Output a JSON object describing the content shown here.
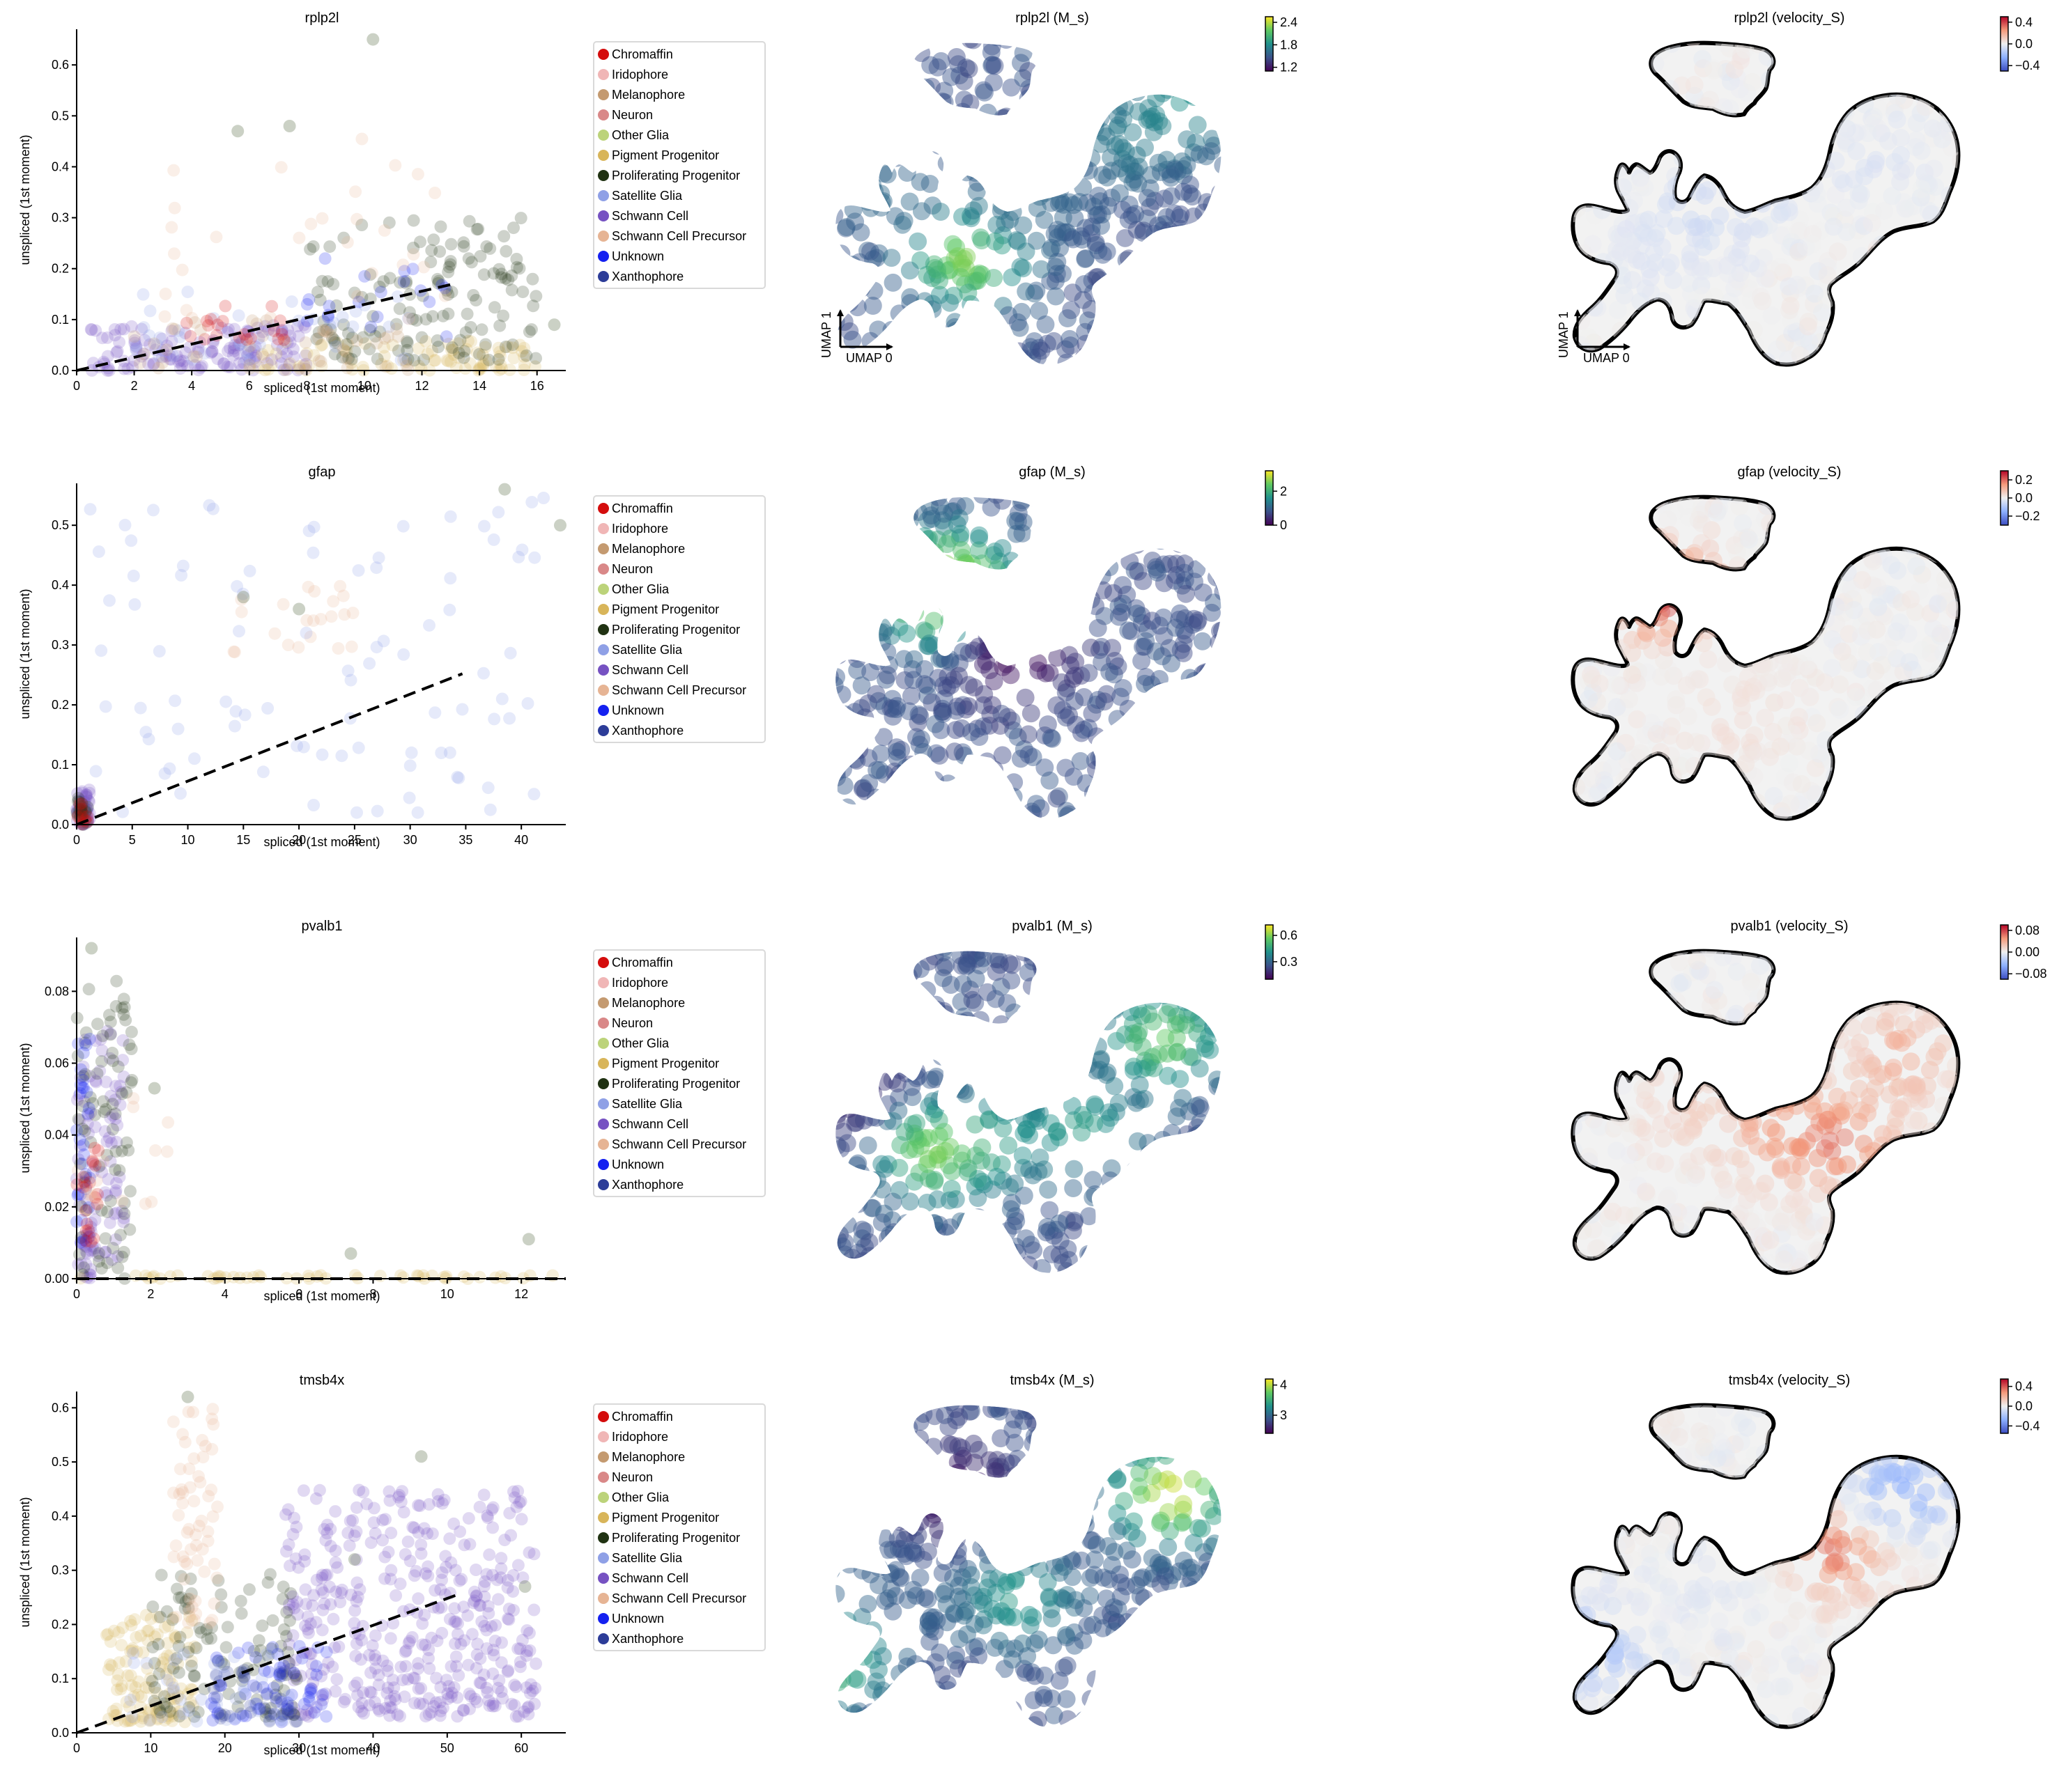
{
  "legend": {
    "items": [
      {
        "label": "Chromaffin",
        "color": "#d40c0c"
      },
      {
        "label": "Iridophore",
        "color": "#f0b6b6"
      },
      {
        "label": "Melanophore",
        "color": "#c49a70"
      },
      {
        "label": "Neuron",
        "color": "#d98888"
      },
      {
        "label": "Other Glia",
        "color": "#bcd37a"
      },
      {
        "label": "Pigment Progenitor",
        "color": "#d8b55a"
      },
      {
        "label": "Proliferating Progenitor",
        "color": "#203212"
      },
      {
        "label": "Satellite Glia",
        "color": "#8fa0e6"
      },
      {
        "label": "Schwann Cell",
        "color": "#7652c2"
      },
      {
        "label": "Schwann Cell Precursor",
        "color": "#e6b494"
      },
      {
        "label": "Unknown",
        "color": "#1420f0"
      },
      {
        "label": "Xanthophore",
        "color": "#2c3c98"
      }
    ]
  },
  "umap_axes": {
    "x": "UMAP 0",
    "y": "UMAP 1"
  },
  "colormaps": {
    "viridis": [
      "#440154",
      "#3b528b",
      "#21918c",
      "#5ec962",
      "#fde725"
    ],
    "coolwarm": [
      "#3b4cc0",
      "#8db0fe",
      "#f0f0f0",
      "#f49a7b",
      "#b40426"
    ]
  },
  "chart_data": [
    {
      "type": "scatter",
      "gene": "rplp2l",
      "title": "rplp2l",
      "xlabel": "spliced (1st moment)",
      "ylabel": "unspliced (1st moment)",
      "xlim": [
        0,
        17
      ],
      "ylim": [
        0,
        0.67
      ],
      "xticks": [
        "0",
        "2",
        "4",
        "6",
        "8",
        "10",
        "12",
        "14",
        "16"
      ],
      "xtick_values": [
        0,
        2,
        4,
        6,
        8,
        10,
        12,
        14,
        16
      ],
      "yticks": [
        "0.0",
        "0.1",
        "0.2",
        "0.3",
        "0.4",
        "0.5",
        "0.6"
      ],
      "ytick_values": [
        0,
        0.1,
        0.2,
        0.3,
        0.4,
        0.5,
        0.6
      ],
      "fit_line": {
        "x": [
          0,
          13.1
        ],
        "y": [
          0,
          0.17
        ]
      },
      "clusters": [
        {
          "ct": 8,
          "xr": [
            0.5,
            8
          ],
          "yr": [
            0,
            0.09
          ],
          "n": 140
        },
        {
          "ct": 5,
          "xr": [
            6,
            16
          ],
          "yr": [
            0,
            0.06
          ],
          "n": 90
        },
        {
          "ct": 6,
          "xr": [
            8,
            16
          ],
          "yr": [
            0.02,
            0.3
          ],
          "n": 140
        },
        {
          "ct": 7,
          "xr": [
            2,
            12
          ],
          "yr": [
            0.02,
            0.16
          ],
          "n": 40
        },
        {
          "ct": 10,
          "xr": [
            8,
            13
          ],
          "yr": [
            0.05,
            0.24
          ],
          "n": 20
        },
        {
          "ct": 9,
          "xr": [
            3,
            13
          ],
          "yr": [
            0.1,
            0.47
          ],
          "n": 30
        },
        {
          "ct": 0,
          "xr": [
            3.5,
            7.5
          ],
          "yr": [
            0.06,
            0.13
          ],
          "n": 20
        },
        {
          "ct": 2,
          "xr": [
            2,
            12
          ],
          "yr": [
            0,
            0.1
          ],
          "n": 40
        }
      ],
      "points": [
        [
          10.3,
          0.65
        ],
        [
          16.6,
          0.09
        ],
        [
          7.4,
          0.48
        ],
        [
          5.6,
          0.47
        ]
      ]
    },
    {
      "type": "scatter",
      "gene": "gfap",
      "title": "gfap",
      "xlabel": "spliced (1st moment)",
      "ylabel": "unspliced (1st moment)",
      "xlim": [
        0,
        44
      ],
      "ylim": [
        0,
        0.57
      ],
      "xticks": [
        "0",
        "5",
        "10",
        "15",
        "20",
        "25",
        "30",
        "35",
        "40"
      ],
      "xtick_values": [
        0,
        5,
        10,
        15,
        20,
        25,
        30,
        35,
        40
      ],
      "yticks": [
        "0.0",
        "0.1",
        "0.2",
        "0.3",
        "0.4",
        "0.5"
      ],
      "ytick_values": [
        0,
        0.1,
        0.2,
        0.3,
        0.4,
        0.5
      ],
      "fit_line": {
        "x": [
          0,
          34.7
        ],
        "y": [
          0,
          0.252
        ]
      },
      "clusters": [
        {
          "ct": 8,
          "xr": [
            0,
            1.2
          ],
          "yr": [
            0,
            0.06
          ],
          "n": 40
        },
        {
          "ct": 6,
          "xr": [
            0,
            1
          ],
          "yr": [
            0,
            0.05
          ],
          "n": 20
        },
        {
          "ct": 0,
          "xr": [
            0,
            1
          ],
          "yr": [
            0,
            0.04
          ],
          "n": 10
        },
        {
          "ct": 9,
          "xr": [
            14,
            26
          ],
          "yr": [
            0.28,
            0.4
          ],
          "n": 22
        },
        {
          "ct": 7,
          "xr": [
            1,
            42
          ],
          "yr": [
            0.02,
            0.55
          ],
          "n": 90
        }
      ],
      "points": [
        [
          38.5,
          0.56
        ],
        [
          43.5,
          0.5
        ],
        [
          15,
          0.38
        ],
        [
          20,
          0.36
        ]
      ]
    },
    {
      "type": "scatter",
      "gene": "pvalb1",
      "title": "pvalb1",
      "xlabel": "spliced (1st moment)",
      "ylabel": "unspliced (1st moment)",
      "xlim": [
        0,
        13.2
      ],
      "ylim": [
        0,
        0.095
      ],
      "xticks": [
        "0",
        "2",
        "4",
        "6",
        "8",
        "10",
        "12"
      ],
      "xtick_values": [
        0,
        2,
        4,
        6,
        8,
        10,
        12
      ],
      "yticks": [
        "0.00",
        "0.02",
        "0.04",
        "0.06",
        "0.08"
      ],
      "ytick_values": [
        0,
        0.02,
        0.04,
        0.06,
        0.08
      ],
      "fit_line": {
        "x": [
          0,
          13.2
        ],
        "y": [
          0,
          0
        ]
      },
      "clusters": [
        {
          "ct": 8,
          "xr": [
            0,
            1.3
          ],
          "yr": [
            0,
            0.07
          ],
          "n": 100
        },
        {
          "ct": 6,
          "xr": [
            0,
            1.5
          ],
          "yr": [
            0,
            0.085
          ],
          "n": 80
        },
        {
          "ct": 10,
          "xr": [
            0,
            0.4
          ],
          "yr": [
            0.01,
            0.07
          ],
          "n": 30
        },
        {
          "ct": 0,
          "xr": [
            0,
            0.6
          ],
          "yr": [
            0.01,
            0.04
          ],
          "n": 20
        },
        {
          "ct": 5,
          "xr": [
            0,
            13
          ],
          "yr": [
            0,
            0.001
          ],
          "n": 50
        },
        {
          "ct": 9,
          "xr": [
            0,
            2.5
          ],
          "yr": [
            0.02,
            0.06
          ],
          "n": 15
        }
      ],
      "points": [
        [
          0.4,
          0.092
        ],
        [
          7.4,
          0.007
        ],
        [
          12.2,
          0.011
        ],
        [
          2.1,
          0.053
        ]
      ]
    },
    {
      "type": "scatter",
      "gene": "tmsb4x",
      "title": "tmsb4x",
      "xlabel": "spliced (1st moment)",
      "ylabel": "unspliced (1st moment)",
      "xlim": [
        0,
        66
      ],
      "ylim": [
        0,
        0.63
      ],
      "xticks": [
        "0",
        "10",
        "20",
        "30",
        "40",
        "50",
        "60"
      ],
      "xtick_values": [
        0,
        10,
        20,
        30,
        40,
        50,
        60
      ],
      "yticks": [
        "0.0",
        "0.1",
        "0.2",
        "0.3",
        "0.4",
        "0.5",
        "0.6"
      ],
      "ytick_values": [
        0,
        0.1,
        0.2,
        0.3,
        0.4,
        0.5,
        0.6
      ],
      "fit_line": {
        "x": [
          0,
          51.6
        ],
        "y": [
          0,
          0.256
        ]
      },
      "clusters": [
        {
          "ct": 8,
          "xr": [
            28,
            62
          ],
          "yr": [
            0.03,
            0.45
          ],
          "n": 420
        },
        {
          "ct": 5,
          "xr": [
            4,
            16
          ],
          "yr": [
            0.02,
            0.22
          ],
          "n": 120
        },
        {
          "ct": 6,
          "xr": [
            10,
            30
          ],
          "yr": [
            0.03,
            0.3
          ],
          "n": 110
        },
        {
          "ct": 10,
          "xr": [
            18,
            34
          ],
          "yr": [
            0.02,
            0.16
          ],
          "n": 60
        },
        {
          "ct": 9,
          "xr": [
            13,
            19
          ],
          "yr": [
            0.2,
            0.6
          ],
          "n": 60
        },
        {
          "ct": 7,
          "xr": [
            5,
            30
          ],
          "yr": [
            0.02,
            0.15
          ],
          "n": 40
        },
        {
          "ct": 11,
          "xr": [
            18,
            30
          ],
          "yr": [
            0.02,
            0.12
          ],
          "n": 30
        }
      ],
      "points": [
        [
          15,
          0.62
        ],
        [
          60.5,
          0.27
        ],
        [
          46.5,
          0.51
        ],
        [
          37.5,
          0.32
        ]
      ]
    }
  ],
  "umap_panels": [
    {
      "row": 0,
      "title": "rplp2l (M_s)",
      "cmap": "viridis",
      "cticks": [
        "1.2",
        "1.8",
        "2.4"
      ],
      "ctick_values": [
        1.2,
        1.8,
        2.4
      ],
      "cmin": 1.1,
      "cmax": 2.55,
      "regions": [
        [
          0.38,
          0.66,
          0.85
        ],
        [
          0.76,
          0.33,
          0.4
        ],
        [
          0.52,
          0.5,
          0.35
        ],
        [
          0.18,
          0.48,
          0.35
        ],
        [
          0.9,
          0.22,
          0.5
        ]
      ]
    },
    {
      "row": 0,
      "title": "rplp2l (velocity_S)",
      "cmap": "coolwarm",
      "cticks": [
        "0.4",
        "0.0",
        "−0.4"
      ],
      "ctick_values": [
        0.4,
        0,
        -0.4
      ],
      "cmin": -0.5,
      "cmax": 0.5,
      "regions": [
        [
          0.5,
          0.45,
          0.42
        ],
        [
          0.35,
          0.55,
          0.4
        ],
        [
          0.8,
          0.4,
          0.44
        ],
        [
          0.25,
          0.7,
          0.45
        ]
      ]
    },
    {
      "row": 1,
      "title": "gfap (M_s)",
      "cmap": "viridis",
      "cticks": [
        "0",
        "2"
      ],
      "ctick_values": [
        0,
        2
      ],
      "cmin": 0,
      "cmax": 3.2,
      "regions": [
        [
          0.33,
          0.3,
          0.95
        ],
        [
          0.33,
          0.32,
          0.8
        ],
        [
          0.5,
          0.5,
          0.02
        ]
      ]
    },
    {
      "row": 1,
      "title": "gfap (velocity_S)",
      "cmap": "coolwarm",
      "cticks": [
        "0.2",
        "0.0",
        "−0.2"
      ],
      "ctick_values": [
        0.2,
        0,
        -0.2
      ],
      "cmin": -0.3,
      "cmax": 0.3,
      "regions": [
        [
          0.3,
          0.33,
          0.9
        ],
        [
          0.5,
          0.5,
          0.52
        ],
        [
          0.45,
          0.7,
          0.56
        ]
      ]
    },
    {
      "row": 2,
      "title": "pvalb1 (M_s)",
      "cmap": "viridis",
      "cticks": [
        "0.6",
        "0.3"
      ],
      "ctick_values": [
        0.6,
        0.3
      ],
      "cmin": 0.1,
      "cmax": 0.72,
      "regions": [
        [
          0.85,
          0.3,
          0.75
        ],
        [
          0.45,
          0.6,
          0.5
        ],
        [
          0.65,
          0.55,
          0.55
        ],
        [
          0.15,
          0.5,
          0.1
        ],
        [
          0.3,
          0.62,
          0.8
        ]
      ]
    },
    {
      "row": 2,
      "title": "pvalb1 (velocity_S)",
      "cmap": "coolwarm",
      "cticks": [
        "0.08",
        "0.00",
        "−0.08"
      ],
      "ctick_values": [
        0.08,
        0,
        -0.08
      ],
      "cmin": -0.1,
      "cmax": 0.1,
      "regions": [
        [
          0.55,
          0.55,
          0.75
        ],
        [
          0.7,
          0.6,
          0.82
        ],
        [
          0.85,
          0.35,
          0.7
        ],
        [
          0.35,
          0.5,
          0.6
        ]
      ]
    },
    {
      "row": 3,
      "title": "tmsb4x (M_s)",
      "cmap": "viridis",
      "cticks": [
        "4",
        "3"
      ],
      "ctick_values": [
        4,
        3
      ],
      "cmin": 2.4,
      "cmax": 4.2,
      "regions": [
        [
          0.87,
          0.3,
          0.95
        ],
        [
          0.5,
          0.6,
          0.55
        ],
        [
          0.15,
          0.5,
          0.3
        ],
        [
          0.05,
          0.78,
          0.7
        ],
        [
          0.35,
          0.3,
          0.05
        ]
      ]
    },
    {
      "row": 3,
      "title": "tmsb4x (velocity_S)",
      "cmap": "coolwarm",
      "cticks": [
        "0.4",
        "0.0",
        "−0.4"
      ],
      "ctick_values": [
        0.4,
        0,
        -0.4
      ],
      "cmin": -0.55,
      "cmax": 0.55,
      "regions": [
        [
          0.7,
          0.45,
          0.85
        ],
        [
          0.85,
          0.3,
          0.25
        ],
        [
          0.4,
          0.55,
          0.45
        ],
        [
          0.1,
          0.75,
          0.3
        ]
      ]
    }
  ]
}
